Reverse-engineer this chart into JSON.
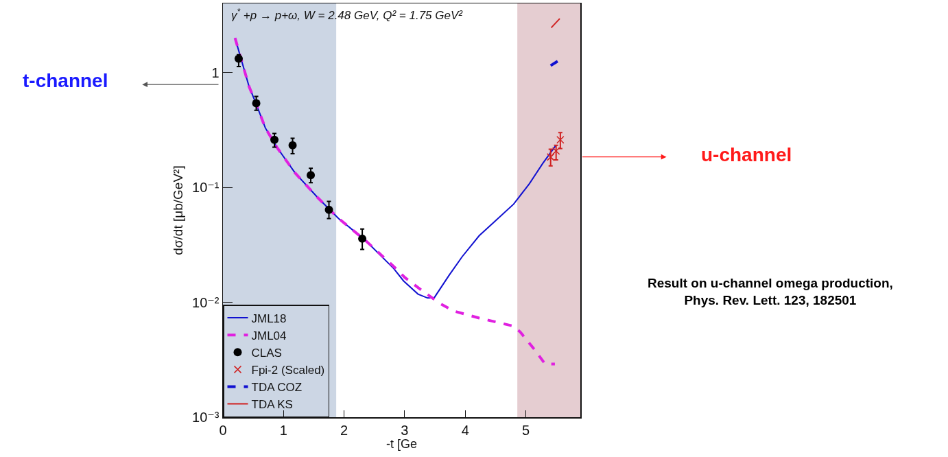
{
  "chart_data": {
    "type": "line",
    "title": "γ$^{*}$ +p → p+ω, W = 2.48 GeV, Q² = 1.75 GeV²",
    "xlabel": "-t [Ge",
    "ylabel": "dσ/dt [μb/GeV²]",
    "log": "y",
    "xlim": [
      0,
      5.9
    ],
    "xticks": [
      0,
      1,
      2,
      3,
      4,
      5
    ],
    "ylim": [
      0.001,
      4
    ],
    "yticks": [
      {
        "value": 0.001,
        "label": "10⁻³"
      },
      {
        "value": 0.01,
        "label": "10⁻²"
      },
      {
        "value": 0.1,
        "label": "10⁻¹"
      },
      1
    ],
    "grid": false,
    "legend": "bottom left",
    "bands": [
      {
        "axis": "x",
        "from": 0,
        "to": 1.87,
        "color": "#ccd6e4"
      },
      {
        "axis": "x",
        "from": 4.86,
        "to": 5.9,
        "color": "#e5cdd1"
      }
    ],
    "series": [
      {
        "name": "JML18",
        "type": "line",
        "color": "#1010d0",
        "line_style": "solid",
        "marker": "none",
        "x": [
          0.2,
          0.43,
          0.55,
          0.7,
          0.89,
          1.19,
          1.57,
          1.91,
          2.36,
          2.82,
          2.98,
          3.22,
          3.38,
          3.49,
          3.73,
          3.95,
          4.23,
          4.49,
          4.8,
          5.06,
          5.28,
          5.49
        ],
        "values": [
          2.0,
          0.76,
          0.53,
          0.33,
          0.224,
          0.134,
          0.081,
          0.0537,
          0.0343,
          0.0197,
          0.0154,
          0.0118,
          0.0109,
          0.011,
          0.0171,
          0.025,
          0.038,
          0.0507,
          0.0717,
          0.108,
          0.162,
          0.23
        ]
      },
      {
        "name": "JML04",
        "type": "line",
        "color": "#e020e0",
        "line_style": "dashed",
        "marker": "none",
        "x": [
          0.2,
          0.43,
          0.55,
          0.7,
          0.89,
          1.19,
          1.57,
          1.91,
          2.36,
          2.82,
          3.0,
          3.3,
          3.58,
          3.81,
          4.23,
          4.8,
          4.91,
          5.14,
          5.32,
          5.48
        ],
        "values": [
          2.0,
          0.76,
          0.53,
          0.33,
          0.224,
          0.134,
          0.081,
          0.0537,
          0.0343,
          0.0205,
          0.0165,
          0.0125,
          0.0098,
          0.0084,
          0.0073,
          0.0062,
          0.0055,
          0.0039,
          0.0029,
          0.0029
        ]
      },
      {
        "name": "CLAS",
        "type": "scatter",
        "color": "#000000",
        "marker": "circle",
        "x": [
          0.26,
          0.55,
          0.85,
          1.15,
          1.45,
          1.75,
          2.3
        ],
        "values": [
          1.32,
          0.54,
          0.26,
          0.233,
          0.128,
          0.064,
          0.0358
        ],
        "errors": [
          [
            1.13,
            1.43
          ],
          [
            0.47,
            0.62
          ],
          [
            0.224,
            0.295
          ],
          [
            0.197,
            0.268
          ],
          [
            0.11,
            0.147
          ],
          [
            0.0537,
            0.0757
          ],
          [
            0.0289,
            0.0435
          ]
        ]
      },
      {
        "name": "Fpi-2 (Scaled)",
        "type": "scatter",
        "color": "#d02020",
        "marker": "cross",
        "x": [
          5.41,
          5.5,
          5.57
        ],
        "values": [
          0.184,
          0.208,
          0.26
        ],
        "errors": [
          [
            0.154,
            0.215
          ],
          [
            0.174,
            0.233
          ],
          [
            0.218,
            0.3
          ]
        ]
      },
      {
        "name": "TDA COZ",
        "type": "line",
        "color": "#1010d0",
        "line_style": "dashed",
        "marker": "none",
        "x": [
          5.41,
          5.57
        ],
        "values": [
          1.15,
          1.3
        ]
      },
      {
        "name": "TDA KS",
        "type": "line",
        "color": "#d02020",
        "line_style": "solid",
        "marker": "none",
        "x": [
          5.42,
          5.56
        ],
        "values": [
          2.46,
          2.95
        ]
      }
    ],
    "annotations": [
      "t-channel",
      "u-channel",
      "Result on u-channel omega production,\nPhys. Rev. Lett. 123, 182501"
    ]
  }
}
